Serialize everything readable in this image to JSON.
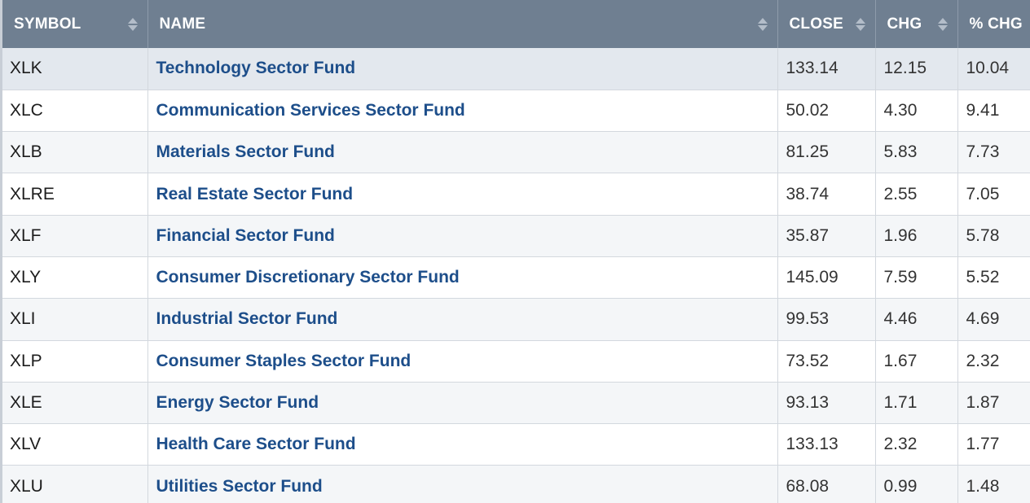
{
  "table": {
    "headers": {
      "symbol": "SYMBOL",
      "name": "NAME",
      "close": "CLOSE",
      "chg": "CHG",
      "pct_chg": "% CHG"
    },
    "rows": [
      {
        "symbol": "XLK",
        "name": "Technology Sector Fund",
        "close": "133.14",
        "chg": "12.15",
        "pct_chg": "10.04"
      },
      {
        "symbol": "XLC",
        "name": "Communication Services Sector Fund",
        "close": "50.02",
        "chg": "4.30",
        "pct_chg": "9.41"
      },
      {
        "symbol": "XLB",
        "name": "Materials Sector Fund",
        "close": "81.25",
        "chg": "5.83",
        "pct_chg": "7.73"
      },
      {
        "symbol": "XLRE",
        "name": "Real Estate Sector Fund",
        "close": "38.74",
        "chg": "2.55",
        "pct_chg": "7.05"
      },
      {
        "symbol": "XLF",
        "name": "Financial Sector Fund",
        "close": "35.87",
        "chg": "1.96",
        "pct_chg": "5.78"
      },
      {
        "symbol": "XLY",
        "name": "Consumer Discretionary Sector Fund",
        "close": "145.09",
        "chg": "7.59",
        "pct_chg": "5.52"
      },
      {
        "symbol": "XLI",
        "name": "Industrial Sector Fund",
        "close": "99.53",
        "chg": "4.46",
        "pct_chg": "4.69"
      },
      {
        "symbol": "XLP",
        "name": "Consumer Staples Sector Fund",
        "close": "73.52",
        "chg": "1.67",
        "pct_chg": "2.32"
      },
      {
        "symbol": "XLE",
        "name": "Energy Sector Fund",
        "close": "93.13",
        "chg": "1.71",
        "pct_chg": "1.87"
      },
      {
        "symbol": "XLV",
        "name": "Health Care Sector Fund",
        "close": "133.13",
        "chg": "2.32",
        "pct_chg": "1.77"
      },
      {
        "symbol": "XLU",
        "name": "Utilities Sector Fund",
        "close": "68.08",
        "chg": "0.99",
        "pct_chg": "1.48"
      }
    ]
  },
  "colors": {
    "header_bg": "#6f7f91",
    "link": "#1d4e8a",
    "selected_row": "#e3e8ee"
  },
  "icons": {
    "sortable": "sort-arrows-icon",
    "sorted_desc": "sort-descending-icon"
  }
}
